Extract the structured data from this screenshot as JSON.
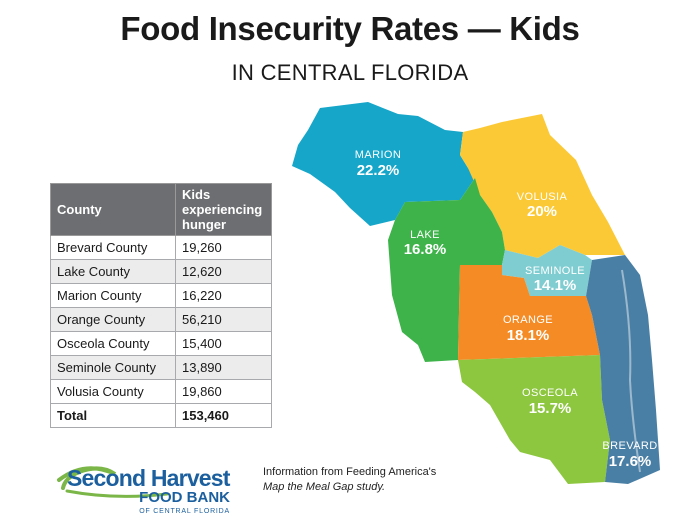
{
  "header": {
    "title": "Food Insecurity Rates — Kids",
    "subtitle": "IN CENTRAL FLORIDA"
  },
  "table": {
    "col_county": "County",
    "col_kids": "Kids experiencing hunger",
    "rows": [
      {
        "county": "Brevard County",
        "kids": "19,260"
      },
      {
        "county": "Lake County",
        "kids": "12,620"
      },
      {
        "county": "Marion County",
        "kids": "16,220"
      },
      {
        "county": "Orange County",
        "kids": "56,210"
      },
      {
        "county": "Osceola County",
        "kids": "15,400"
      },
      {
        "county": "Seminole County",
        "kids": "13,890"
      },
      {
        "county": "Volusia County",
        "kids": "19,860"
      }
    ],
    "total_label": "Total",
    "total_value": "153,460"
  },
  "map": {
    "counties": [
      {
        "name": "MARION",
        "rate": "22.2%",
        "color": "#16a6c9"
      },
      {
        "name": "VOLUSIA",
        "rate": "20%",
        "color": "#fcc936"
      },
      {
        "name": "LAKE",
        "rate": "16.8%",
        "color": "#3db34a"
      },
      {
        "name": "SEMINOLE",
        "rate": "14.1%",
        "color": "#7fcdd1"
      },
      {
        "name": "ORANGE",
        "rate": "18.1%",
        "color": "#f58b25"
      },
      {
        "name": "OSCEOLA",
        "rate": "15.7%",
        "color": "#8dc63f"
      },
      {
        "name": "BREVARD",
        "rate": "17.6%",
        "color": "#4a7fa5"
      }
    ]
  },
  "logo": {
    "line1": "Second Harvest",
    "line2": "FOOD BANK",
    "line3": "OF CENTRAL FLORIDA",
    "color_blue": "#1b5f9e",
    "color_green": "#7ab648"
  },
  "source": {
    "line1": "Information from Feeding America's",
    "line2": "Map the Meal Gap study."
  }
}
